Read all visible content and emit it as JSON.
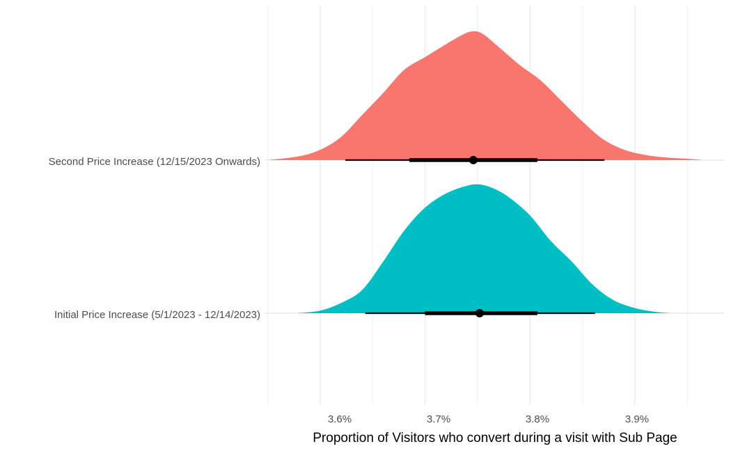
{
  "chart_data": {
    "type": "halfeye",
    "title": "",
    "xlabel": "Proportion of Visitors who convert during a visit with Sub Page",
    "ylabel": "",
    "xlim": [
      3.547,
      3.985
    ],
    "x_ticks": [
      3.6,
      3.7,
      3.8,
      3.9
    ],
    "x_tick_labels": [
      "3.6%",
      "3.7%",
      "3.8%",
      "3.9%"
    ],
    "grid": true,
    "legend": "none",
    "categories": [
      "Second Price Increase (12/15/2023 Onwards)",
      "Initial Price Increase (5/1/2023 - 12/14/2023)"
    ],
    "series": [
      {
        "name": "Second Price Increase (12/15/2023 Onwards)",
        "color": "#F8766D",
        "point": 3.746,
        "interval_66": [
          3.685,
          3.807
        ],
        "interval_95": [
          3.624,
          3.871
        ],
        "density": {
          "x": [
            3.55,
            3.58,
            3.6,
            3.62,
            3.64,
            3.66,
            3.68,
            3.7,
            3.72,
            3.735,
            3.745,
            3.755,
            3.77,
            3.79,
            3.81,
            3.83,
            3.85,
            3.87,
            3.89,
            3.91,
            3.93,
            3.95,
            3.965
          ],
          "y": [
            0.0,
            0.03,
            0.08,
            0.18,
            0.35,
            0.52,
            0.7,
            0.8,
            0.9,
            0.97,
            1.0,
            0.98,
            0.88,
            0.74,
            0.62,
            0.46,
            0.3,
            0.16,
            0.08,
            0.04,
            0.02,
            0.01,
            0.0
          ]
        }
      },
      {
        "name": "Initial Price Increase (5/1/2023 - 12/14/2023)",
        "color": "#00BFC4",
        "point": 3.752,
        "interval_66": [
          3.7,
          3.807
        ],
        "interval_95": [
          3.643,
          3.862
        ],
        "density": {
          "x": [
            3.578,
            3.6,
            3.62,
            3.64,
            3.66,
            3.68,
            3.7,
            3.72,
            3.74,
            3.752,
            3.765,
            3.78,
            3.8,
            3.82,
            3.84,
            3.86,
            3.88,
            3.9,
            3.92,
            3.935
          ],
          "y": [
            0.0,
            0.02,
            0.08,
            0.18,
            0.4,
            0.64,
            0.82,
            0.93,
            0.99,
            1.0,
            0.97,
            0.9,
            0.76,
            0.56,
            0.4,
            0.22,
            0.1,
            0.04,
            0.01,
            0.0
          ]
        }
      }
    ]
  }
}
